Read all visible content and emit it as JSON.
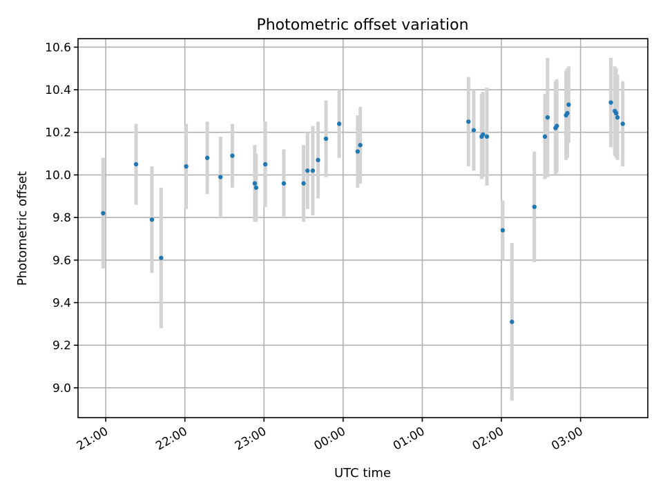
{
  "chart_data": {
    "type": "scatter",
    "title": "Photometric offset variation",
    "xlabel": "UTC time",
    "ylabel": "Photometric offset",
    "x_axis": {
      "kind": "time",
      "start": "20:39",
      "end": "03:51",
      "ticks": [
        "21:00",
        "22:00",
        "23:00",
        "00:00",
        "01:00",
        "02:00",
        "03:00"
      ]
    },
    "ylim": [
      8.86,
      10.64
    ],
    "yticks": [
      9.0,
      9.2,
      9.4,
      9.6,
      9.8,
      10.0,
      10.2,
      10.4,
      10.6
    ],
    "grid": true,
    "colors": {
      "points": "#1f77b4",
      "errorbars": "#d3d3d3"
    },
    "points": [
      {
        "t": "20:58",
        "y": 9.82,
        "err": 0.26
      },
      {
        "t": "21:23",
        "y": 10.05,
        "err": 0.19
      },
      {
        "t": "21:35",
        "y": 9.79,
        "err": 0.25
      },
      {
        "t": "21:42",
        "y": 9.61,
        "err": 0.33
      },
      {
        "t": "22:01",
        "y": 10.04,
        "err": 0.2
      },
      {
        "t": "22:17",
        "y": 10.08,
        "err": 0.17
      },
      {
        "t": "22:27",
        "y": 9.99,
        "err": 0.19
      },
      {
        "t": "22:36",
        "y": 10.09,
        "err": 0.15
      },
      {
        "t": "22:53",
        "y": 9.96,
        "err": 0.18
      },
      {
        "t": "22:54",
        "y": 9.94,
        "err": 0.16
      },
      {
        "t": "23:01",
        "y": 10.05,
        "err": 0.2
      },
      {
        "t": "23:15",
        "y": 9.96,
        "err": 0.16
      },
      {
        "t": "23:30",
        "y": 9.96,
        "err": 0.18
      },
      {
        "t": "23:33",
        "y": 10.02,
        "err": 0.18
      },
      {
        "t": "23:37",
        "y": 10.02,
        "err": 0.21
      },
      {
        "t": "23:41",
        "y": 10.07,
        "err": 0.18
      },
      {
        "t": "23:47",
        "y": 10.17,
        "err": 0.18
      },
      {
        "t": "23:57",
        "y": 10.24,
        "err": 0.16
      },
      {
        "t": "00:11",
        "y": 10.11,
        "err": 0.17
      },
      {
        "t": "00:13",
        "y": 10.14,
        "err": 0.18
      },
      {
        "t": "01:35",
        "y": 10.25,
        "err": 0.21
      },
      {
        "t": "01:39",
        "y": 10.21,
        "err": 0.19
      },
      {
        "t": "01:45",
        "y": 10.18,
        "err": 0.2
      },
      {
        "t": "01:46",
        "y": 10.19,
        "err": 0.2
      },
      {
        "t": "01:49",
        "y": 10.18,
        "err": 0.23
      },
      {
        "t": "02:01",
        "y": 9.74,
        "err": 0.14
      },
      {
        "t": "02:08",
        "y": 9.31,
        "err": 0.37
      },
      {
        "t": "02:25",
        "y": 9.85,
        "err": 0.26
      },
      {
        "t": "02:33",
        "y": 10.18,
        "err": 0.2
      },
      {
        "t": "02:35",
        "y": 10.27,
        "err": 0.28
      },
      {
        "t": "02:41",
        "y": 10.22,
        "err": 0.22
      },
      {
        "t": "02:42",
        "y": 10.23,
        "err": 0.22
      },
      {
        "t": "02:49",
        "y": 10.28,
        "err": 0.21
      },
      {
        "t": "02:50",
        "y": 10.29,
        "err": 0.21
      },
      {
        "t": "02:51",
        "y": 10.33,
        "err": 0.18
      },
      {
        "t": "03:23",
        "y": 10.34,
        "err": 0.21
      },
      {
        "t": "03:26",
        "y": 10.3,
        "err": 0.21
      },
      {
        "t": "03:27",
        "y": 10.29,
        "err": 0.21
      },
      {
        "t": "03:28",
        "y": 10.27,
        "err": 0.2
      },
      {
        "t": "03:32",
        "y": 10.24,
        "err": 0.2
      }
    ]
  }
}
